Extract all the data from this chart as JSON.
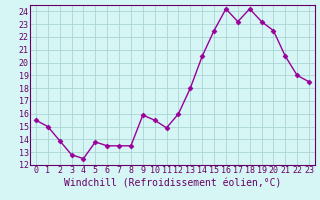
{
  "x": [
    0,
    1,
    2,
    3,
    4,
    5,
    6,
    7,
    8,
    9,
    10,
    11,
    12,
    13,
    14,
    15,
    16,
    17,
    18,
    19,
    20,
    21,
    22,
    23
  ],
  "y": [
    15.5,
    15.0,
    13.9,
    12.8,
    12.5,
    13.8,
    13.5,
    13.5,
    13.5,
    15.9,
    15.5,
    14.9,
    16.0,
    18.0,
    20.5,
    22.5,
    24.2,
    23.2,
    24.2,
    23.2,
    22.5,
    20.5,
    19.0,
    18.5
  ],
  "line_color": "#990099",
  "marker": "D",
  "marker_size": 2.5,
  "bg_color": "#d6f5f5",
  "grid_color": "#aad4d4",
  "xlabel": "Windchill (Refroidissement éolien,°C)",
  "xlim": [
    -0.5,
    23.5
  ],
  "ylim": [
    12,
    24.5
  ],
  "yticks": [
    12,
    13,
    14,
    15,
    16,
    17,
    18,
    19,
    20,
    21,
    22,
    23,
    24
  ],
  "xtick_labels": [
    "0",
    "1",
    "2",
    "3",
    "4",
    "5",
    "6",
    "7",
    "8",
    "9",
    "10",
    "11",
    "12",
    "13",
    "14",
    "15",
    "16",
    "17",
    "18",
    "19",
    "20",
    "21",
    "22",
    "23"
  ],
  "tick_fontsize": 6.0,
  "xlabel_fontsize": 7.0,
  "line_width": 1.0,
  "spine_color": "#660066"
}
